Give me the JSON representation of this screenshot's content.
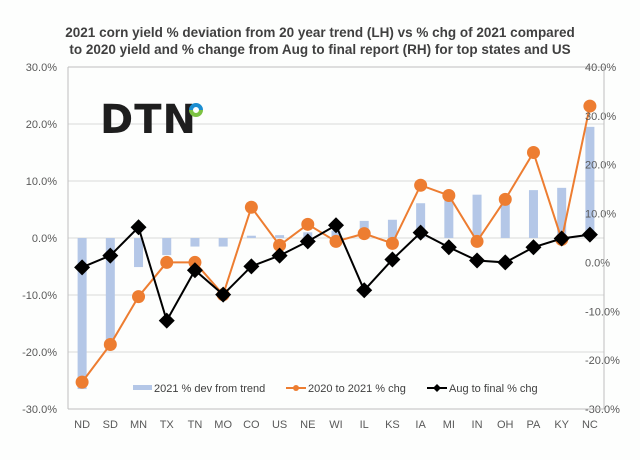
{
  "brand": {
    "logo_text": "DTN",
    "logo_dot_colors": [
      "#1b8ed1",
      "#7cc242"
    ]
  },
  "chart_data": {
    "type": "bar+line",
    "title_lines": [
      "2021 corn yield %  deviation from 20 year trend (LH) vs % chg of 2021 compared",
      "to 2020 yield and % change from Aug to final report (RH) for top states and US"
    ],
    "categories": [
      "ND",
      "SD",
      "MN",
      "TX",
      "TN",
      "MO",
      "CO",
      "US",
      "NE",
      "WI",
      "IL",
      "KS",
      "IA",
      "MI",
      "IN",
      "OH",
      "PA",
      "KY",
      "NC"
    ],
    "left_axis": {
      "min": -30,
      "max": 30,
      "step": 10,
      "ticks": [
        "30.0%",
        "20.0%",
        "10.0%",
        "0.0%",
        "-10.0%",
        "-20.0%",
        "-30.0%"
      ]
    },
    "right_axis": {
      "min": -30,
      "max": 40,
      "step": 10,
      "ticks": [
        "40.0%",
        "30.0%",
        "20.0%",
        "10.0%",
        "0.0%",
        "-10.0%",
        "-20.0%",
        "-30.0%"
      ]
    },
    "grid": true,
    "legend_position": "bottom-inside",
    "series": [
      {
        "name": "2021 % dev from trend",
        "type": "bar",
        "axis": "left",
        "color": "#b4c7e7",
        "values": [
          -26.5,
          -19.3,
          -5.1,
          -3.0,
          -1.5,
          -1.5,
          0.4,
          0.5,
          1.0,
          1.3,
          3.0,
          3.2,
          6.1,
          6.6,
          7.6,
          7.2,
          8.4,
          8.8,
          19.5
        ]
      },
      {
        "name": "2020 to 2021 % chg",
        "type": "line",
        "marker": "circle",
        "axis": "right",
        "color": "#ed7d31",
        "values": [
          -24.5,
          -16.8,
          -7.0,
          0.0,
          0.0,
          -6.6,
          11.3,
          3.5,
          7.8,
          4.3,
          5.9,
          3.9,
          15.8,
          13.7,
          4.3,
          12.9,
          22.5,
          4.7,
          32.0
        ]
      },
      {
        "name": "Aug to final % chg",
        "type": "line",
        "marker": "diamond",
        "axis": "right",
        "color": "#000000",
        "values": [
          -1.0,
          1.4,
          7.2,
          -11.9,
          -1.6,
          -6.6,
          -0.8,
          1.4,
          4.3,
          7.6,
          -5.7,
          0.6,
          6.1,
          3.1,
          0.4,
          0.0,
          3.1,
          4.9,
          5.7
        ]
      }
    ]
  }
}
